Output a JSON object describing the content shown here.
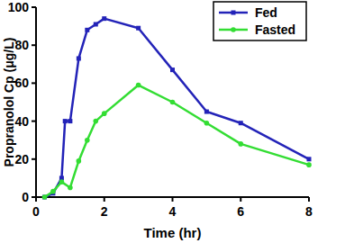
{
  "chart_data": {
    "type": "line",
    "x_label": "Time (hr)",
    "y_label": "Propranolol Cp (μg/L)",
    "xlim": [
      0,
      8
    ],
    "xticks": [
      0,
      2,
      4,
      6,
      8
    ],
    "ylim": [
      0,
      100
    ],
    "yticks": [
      0,
      20,
      40,
      60,
      80,
      100
    ],
    "grid": false,
    "legend": "upper right",
    "series": [
      {
        "name": "Fed",
        "color": "#2323b8",
        "marker": "square",
        "x": [
          0.25,
          0.5,
          0.75,
          0.85,
          1,
          1.25,
          1.5,
          1.75,
          2,
          3,
          4,
          5,
          6,
          8
        ],
        "values": [
          0,
          2,
          10,
          40,
          40,
          73,
          88,
          91,
          94,
          89,
          67,
          45,
          39,
          20
        ]
      },
      {
        "name": "Fasted",
        "color": "#33dd33",
        "marker": "circle",
        "x": [
          0.25,
          0.5,
          0.75,
          1,
          1.25,
          1.5,
          1.75,
          2,
          3,
          4,
          5,
          6,
          8
        ],
        "values": [
          0,
          3,
          8,
          5,
          19,
          30,
          40,
          44,
          59,
          50,
          39,
          28,
          17
        ]
      }
    ]
  }
}
